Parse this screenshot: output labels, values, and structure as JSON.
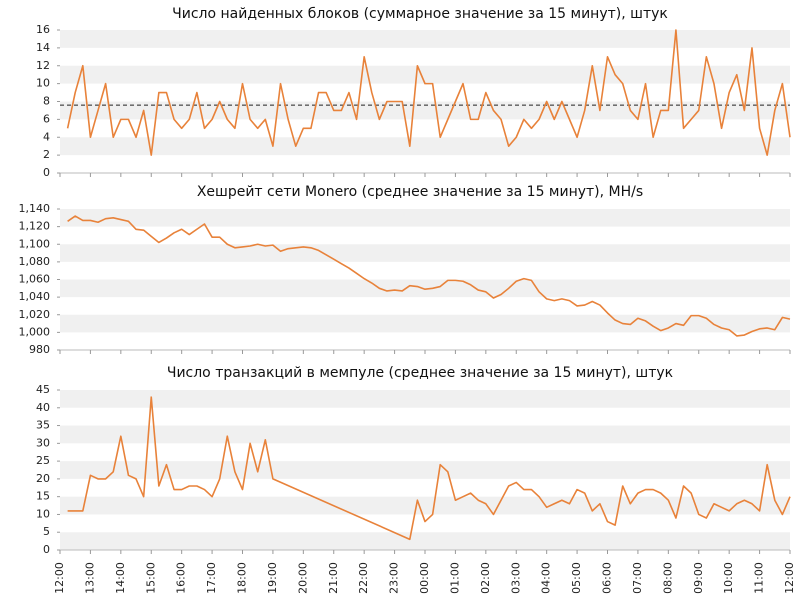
{
  "chart_data": [
    {
      "type": "line",
      "title": "Число найденных блоков (суммарное значение за 15 минут), штук",
      "color": "#e8823a",
      "hline": 7.6,
      "xlim": [
        0,
        24
      ],
      "ylim": [
        0,
        16
      ],
      "yticks": [
        0,
        2,
        4,
        6,
        8,
        10,
        12,
        14,
        16
      ],
      "bands": true,
      "x": [
        0.25,
        0.5,
        0.75,
        1,
        1.25,
        1.5,
        1.75,
        2,
        2.25,
        2.5,
        2.75,
        3,
        3.25,
        3.5,
        3.75,
        4,
        4.25,
        4.5,
        4.75,
        5,
        5.25,
        5.5,
        5.75,
        6,
        6.25,
        6.5,
        6.75,
        7,
        7.25,
        7.5,
        7.75,
        8,
        8.25,
        8.5,
        8.75,
        9,
        9.25,
        9.5,
        9.75,
        10,
        10.25,
        10.5,
        10.75,
        11,
        11.25,
        11.5,
        11.75,
        12,
        12.25,
        12.5,
        12.75,
        13,
        13.25,
        13.5,
        13.75,
        14,
        14.25,
        14.5,
        14.75,
        15,
        15.25,
        15.5,
        15.75,
        16,
        16.25,
        16.5,
        16.75,
        17,
        17.25,
        17.5,
        17.75,
        18,
        18.25,
        18.5,
        18.75,
        19,
        19.25,
        19.5,
        19.75,
        20,
        20.25,
        20.5,
        20.75,
        21,
        21.25,
        21.5,
        21.75,
        22,
        22.25,
        22.5,
        22.75,
        23,
        23.25,
        23.5,
        23.75,
        24
      ],
      "values": [
        5,
        9,
        12,
        4,
        7,
        10,
        4,
        6,
        6,
        4,
        7,
        2,
        9,
        9,
        6,
        5,
        6,
        9,
        5,
        6,
        8,
        6,
        5,
        10,
        6,
        5,
        6,
        3,
        10,
        6,
        3,
        5,
        5,
        9,
        9,
        7,
        7,
        9,
        6,
        13,
        9,
        6,
        8,
        8,
        8,
        3,
        12,
        10,
        10,
        4,
        6,
        8,
        10,
        6,
        6,
        9,
        7,
        6,
        3,
        4,
        6,
        5,
        6,
        8,
        6,
        8,
        6,
        4,
        7,
        12,
        7,
        13,
        11,
        10,
        7,
        6,
        10,
        4,
        7,
        7,
        16,
        5,
        6,
        7,
        13,
        10,
        5,
        9,
        11,
        7,
        14,
        5,
        2,
        7,
        10,
        4
      ]
    },
    {
      "type": "line",
      "title": "Хешрейт сети Monero (среднее значение за 15 минут), MH/s",
      "color": "#e8823a",
      "xlim": [
        0,
        24
      ],
      "ylim": [
        980,
        1140
      ],
      "bands": true,
      "yticks": [
        980,
        {
          "value": 1000,
          "label": "1,000"
        },
        {
          "value": 1020,
          "label": "1,020"
        },
        {
          "value": 1040,
          "label": "1,040"
        },
        {
          "value": 1060,
          "label": "1,060"
        },
        {
          "value": 1080,
          "label": "1,080"
        },
        {
          "value": 1100,
          "label": "1,100"
        },
        {
          "value": 1120,
          "label": "1,120"
        },
        {
          "value": 1140,
          "label": "1,140"
        }
      ],
      "x": [
        0.25,
        0.5,
        0.75,
        1,
        1.25,
        1.5,
        1.75,
        2,
        2.25,
        2.5,
        2.75,
        3,
        3.25,
        3.5,
        3.75,
        4,
        4.25,
        4.5,
        4.75,
        5,
        5.25,
        5.5,
        5.75,
        6,
        6.25,
        6.5,
        6.75,
        7,
        7.25,
        7.5,
        7.75,
        8,
        8.25,
        8.5,
        8.75,
        9,
        9.25,
        9.5,
        9.75,
        10,
        10.25,
        10.5,
        10.75,
        11,
        11.25,
        11.5,
        11.75,
        12,
        12.25,
        12.5,
        12.75,
        13,
        13.25,
        13.5,
        13.75,
        14,
        14.25,
        14.5,
        14.75,
        15,
        15.25,
        15.5,
        15.75,
        16,
        16.25,
        16.5,
        16.75,
        17,
        17.25,
        17.5,
        17.75,
        18,
        18.25,
        18.5,
        18.75,
        19,
        19.25,
        19.5,
        19.75,
        20,
        20.25,
        20.5,
        20.75,
        21,
        21.25,
        21.5,
        21.75,
        22,
        22.25,
        22.5,
        22.75,
        23,
        23.25,
        23.5,
        23.75,
        24
      ],
      "values": [
        1126,
        1132,
        1127,
        1127,
        1125,
        1129,
        1130,
        1128,
        1126,
        1117,
        1116,
        1109,
        1102,
        1107,
        1113,
        1117,
        1111,
        1117,
        1123,
        1108,
        1108,
        1100,
        1096,
        1097,
        1098,
        1100,
        1098,
        1099,
        1092,
        1095,
        1096,
        1097,
        1096,
        1093,
        1088,
        1083,
        1078,
        1073,
        1067,
        1061,
        1056,
        1050,
        1047,
        1048,
        1047,
        1053,
        1052,
        1049,
        1050,
        1052,
        1059,
        1059,
        1058,
        1054,
        1048,
        1046,
        1039,
        1043,
        1050,
        1058,
        1061,
        1059,
        1046,
        1038,
        1036,
        1038,
        1036,
        1030,
        1031,
        1035,
        1031,
        1022,
        1014,
        1010,
        1009,
        1016,
        1013,
        1007,
        1002,
        1005,
        1010,
        1008,
        1019,
        1019,
        1016,
        1009,
        1005,
        1003,
        996,
        997,
        1001,
        1004,
        1005,
        1003,
        1017,
        1015
      ]
    },
    {
      "type": "line",
      "title": "Число транзакций в мемпуле (среднее значение за 15 минут), штук",
      "color": "#e8823a",
      "xlim": [
        0,
        24
      ],
      "ylim": [
        0,
        45
      ],
      "yticks": [
        0,
        5,
        10,
        15,
        20,
        25,
        30,
        35,
        40,
        45
      ],
      "bands": true,
      "xticks": [
        {
          "value": 0,
          "label": "12:00"
        },
        {
          "value": 1,
          "label": "13:00"
        },
        {
          "value": 2,
          "label": "14:00"
        },
        {
          "value": 3,
          "label": "15:00"
        },
        {
          "value": 4,
          "label": "16:00"
        },
        {
          "value": 5,
          "label": "17:00"
        },
        {
          "value": 6,
          "label": "18:00"
        },
        {
          "value": 7,
          "label": "19:00"
        },
        {
          "value": 8,
          "label": "20:00"
        },
        {
          "value": 9,
          "label": "21:00"
        },
        {
          "value": 10,
          "label": "22:00"
        },
        {
          "value": 11,
          "label": "23:00"
        },
        {
          "value": 12,
          "label": "00:00"
        },
        {
          "value": 13,
          "label": "01:00"
        },
        {
          "value": 14,
          "label": "02:00"
        },
        {
          "value": 15,
          "label": "03:00"
        },
        {
          "value": 16,
          "label": "04:00"
        },
        {
          "value": 17,
          "label": "05:00"
        },
        {
          "value": 18,
          "label": "06:00"
        },
        {
          "value": 19,
          "label": "07:00"
        },
        {
          "value": 20,
          "label": "08:00"
        },
        {
          "value": 21,
          "label": "09:00"
        },
        {
          "value": 22,
          "label": "10:00"
        },
        {
          "value": 23,
          "label": "11:00"
        },
        {
          "value": 24,
          "label": "12:00"
        }
      ],
      "x": [
        0.25,
        0.5,
        0.75,
        1,
        1.25,
        1.5,
        1.75,
        2,
        2.25,
        2.5,
        2.75,
        3,
        3.25,
        3.5,
        3.75,
        4,
        4.25,
        4.5,
        4.75,
        5,
        5.25,
        5.5,
        5.75,
        6,
        6.25,
        6.5,
        6.75,
        7,
        11.5,
        11.75,
        12,
        12.25,
        12.5,
        12.75,
        13,
        13.25,
        13.5,
        13.75,
        14,
        14.25,
        14.5,
        14.75,
        15,
        15.25,
        15.5,
        15.75,
        16,
        16.25,
        16.5,
        16.75,
        17,
        17.25,
        17.5,
        17.75,
        18,
        18.25,
        18.5,
        18.75,
        19,
        19.25,
        19.5,
        19.75,
        20,
        20.25,
        20.5,
        20.75,
        21,
        21.25,
        21.5,
        21.75,
        22,
        22.25,
        22.5,
        22.75,
        23,
        23.25,
        23.5,
        23.75,
        24
      ],
      "values": [
        11,
        11,
        11,
        21,
        20,
        20,
        22,
        32,
        21,
        20,
        15,
        43,
        18,
        24,
        17,
        17,
        18,
        18,
        17,
        15,
        20,
        32,
        22,
        17,
        30,
        22,
        31,
        20,
        3,
        14,
        8,
        10,
        24,
        22,
        14,
        15,
        16,
        14,
        13,
        10,
        14,
        18,
        19,
        17,
        17,
        15,
        12,
        13,
        14,
        13,
        17,
        16,
        11,
        13,
        8,
        7,
        18,
        13,
        16,
        17,
        17,
        16,
        14,
        9,
        18,
        16,
        10,
        9,
        13,
        12,
        11,
        13,
        14,
        13,
        11,
        24,
        14,
        10,
        15
      ]
    }
  ]
}
